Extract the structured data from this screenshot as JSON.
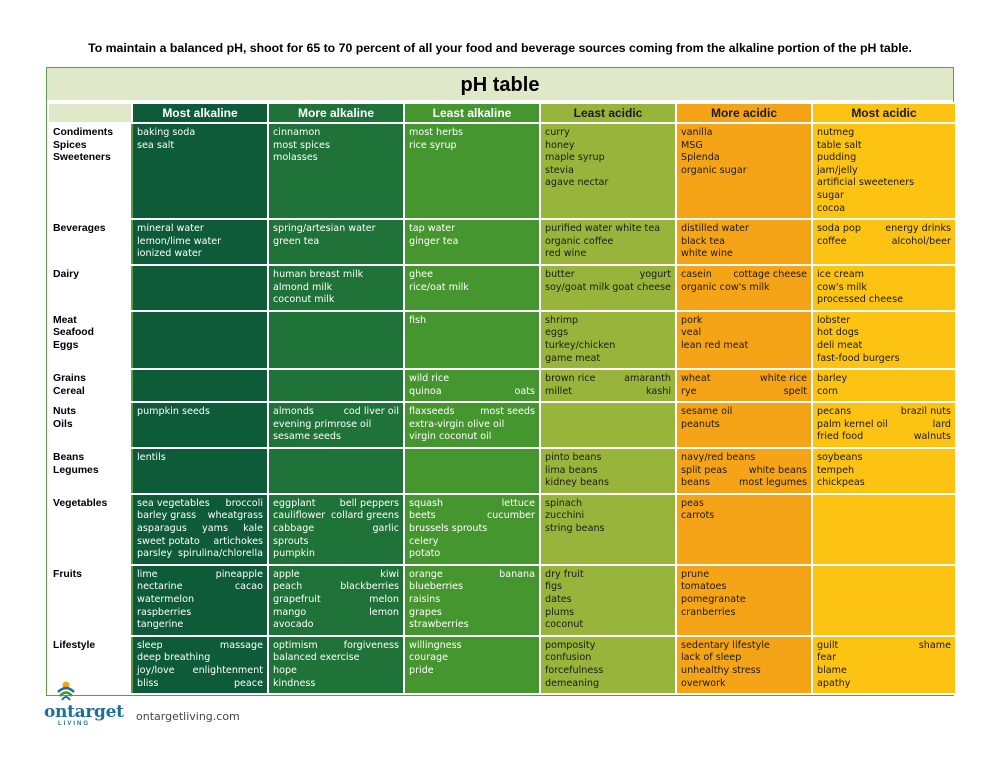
{
  "intro": "To maintain a balanced pH, shoot for 65 to 70 percent of all your food and beverage sources coming from the alkaline portion of the pH table.",
  "title": "pH table",
  "columns": [
    "Most alkaline",
    "More alkaline",
    "Least alkaline",
    "Least acidic",
    "More acidic",
    "Most acidic"
  ],
  "rows": [
    {
      "category": [
        "Condiments",
        "Spices",
        "Sweeteners"
      ],
      "cells": [
        [
          [
            "baking soda"
          ],
          [
            "sea salt"
          ]
        ],
        [
          [
            "cinnamon"
          ],
          [
            "most spices"
          ],
          [
            "molasses"
          ]
        ],
        [
          [
            "most herbs"
          ],
          [
            "rice syrup"
          ]
        ],
        [
          [
            "curry"
          ],
          [
            "honey"
          ],
          [
            "maple syrup"
          ],
          [
            "stevia"
          ],
          [
            "agave nectar"
          ]
        ],
        [
          [
            "vanilla"
          ],
          [
            "MSG"
          ],
          [
            "Splenda"
          ],
          [
            "organic sugar"
          ]
        ],
        [
          [
            "nutmeg"
          ],
          [
            "table salt"
          ],
          [
            "pudding"
          ],
          [
            "jam/jelly"
          ],
          [
            "artificial sweeteners"
          ],
          [
            "sugar"
          ],
          [
            "cocoa"
          ]
        ]
      ]
    },
    {
      "category": [
        "Beverages"
      ],
      "cells": [
        [
          [
            "mineral water"
          ],
          [
            "lemon/lime water"
          ],
          [
            "ionized water"
          ]
        ],
        [
          [
            "spring/artesian water"
          ],
          [
            "green tea"
          ]
        ],
        [
          [
            "tap water"
          ],
          [
            "ginger tea"
          ]
        ],
        [
          [
            "purified water white tea"
          ],
          [
            "organic coffee"
          ],
          [
            "red wine"
          ]
        ],
        [
          [
            "distilled water"
          ],
          [
            "black tea"
          ],
          [
            "white wine"
          ]
        ],
        [
          [
            "soda pop",
            "energy drinks"
          ],
          [
            "coffee",
            "alcohol/beer"
          ]
        ]
      ]
    },
    {
      "category": [
        "Dairy"
      ],
      "cells": [
        [],
        [
          [
            "human breast milk"
          ],
          [
            "almond milk"
          ],
          [
            "coconut milk"
          ]
        ],
        [
          [
            "ghee"
          ],
          [
            "rice/oat milk"
          ]
        ],
        [
          [
            "butter",
            "yogurt"
          ],
          [
            "soy/goat milk",
            "goat cheese"
          ]
        ],
        [
          [
            "casein",
            "cottage cheese"
          ],
          [
            "organic cow's milk"
          ]
        ],
        [
          [
            "ice cream"
          ],
          [
            "cow's milk"
          ],
          [
            "processed cheese"
          ]
        ]
      ]
    },
    {
      "category": [
        "Meat",
        "Seafood",
        "Eggs"
      ],
      "cells": [
        [],
        [],
        [
          [
            "fish"
          ]
        ],
        [
          [
            "shrimp"
          ],
          [
            "eggs"
          ],
          [
            "turkey/chicken"
          ],
          [
            "game meat"
          ]
        ],
        [
          [
            "pork"
          ],
          [
            "veal"
          ],
          [
            "lean red meat"
          ]
        ],
        [
          [
            "lobster"
          ],
          [
            "hot dogs"
          ],
          [
            "deli meat"
          ],
          [
            "fast-food burgers"
          ]
        ]
      ]
    },
    {
      "category": [
        "Grains",
        "Cereal"
      ],
      "cells": [
        [],
        [],
        [
          [
            "wild rice"
          ],
          [
            "quinoa",
            "oats"
          ]
        ],
        [
          [
            "brown rice",
            "amaranth"
          ],
          [
            "millet",
            "kashi"
          ]
        ],
        [
          [
            "wheat",
            "white rice"
          ],
          [
            "rye",
            "spelt"
          ]
        ],
        [
          [
            "barley"
          ],
          [
            "corn"
          ]
        ]
      ]
    },
    {
      "category": [
        "Nuts",
        "Oils"
      ],
      "cells": [
        [
          [
            "pumpkin seeds"
          ]
        ],
        [
          [
            "almonds",
            "cod liver oil"
          ],
          [
            "evening primrose oil"
          ],
          [
            "sesame seeds"
          ]
        ],
        [
          [
            "flaxseeds",
            "most seeds"
          ],
          [
            "extra-virgin olive oil"
          ],
          [
            "virgin coconut oil"
          ]
        ],
        [],
        [
          [
            "sesame oil"
          ],
          [
            "peanuts"
          ]
        ],
        [
          [
            "pecans",
            "brazil nuts"
          ],
          [
            "palm kernel oil",
            "lard"
          ],
          [
            "fried food",
            "walnuts"
          ]
        ]
      ]
    },
    {
      "category": [
        "Beans",
        "Legumes"
      ],
      "cells": [
        [
          [
            "lentils"
          ]
        ],
        [],
        [],
        [
          [
            "pinto beans"
          ],
          [
            "lima beans"
          ],
          [
            "kidney beans"
          ]
        ],
        [
          [
            "navy/red beans"
          ],
          [
            "split peas",
            "white beans"
          ],
          [
            "beans",
            "most legumes"
          ]
        ],
        [
          [
            "soybeans"
          ],
          [
            "tempeh"
          ],
          [
            "chickpeas"
          ]
        ]
      ]
    },
    {
      "category": [
        "Vegetables"
      ],
      "cells": [
        [
          [
            "sea vegetables",
            "broccoli"
          ],
          [
            "barley grass",
            "wheatgrass"
          ],
          [
            "asparagus",
            "yams",
            "kale"
          ],
          [
            "sweet potato",
            "artichokes"
          ],
          [
            "parsley",
            "spirulina/chlorella"
          ]
        ],
        [
          [
            "eggplant",
            "bell peppers"
          ],
          [
            "cauliflower",
            "collard greens"
          ],
          [
            "cabbage",
            "garlic"
          ],
          [
            "sprouts"
          ],
          [
            "pumpkin"
          ]
        ],
        [
          [
            "squash",
            "lettuce"
          ],
          [
            "beets",
            "cucumber"
          ],
          [
            "brussels sprouts"
          ],
          [
            "celery"
          ],
          [
            "potato"
          ]
        ],
        [
          [
            "spinach"
          ],
          [
            "zucchini"
          ],
          [
            "string beans"
          ]
        ],
        [
          [
            "peas"
          ],
          [
            "carrots"
          ]
        ],
        []
      ]
    },
    {
      "category": [
        "Fruits"
      ],
      "cells": [
        [
          [
            "lime",
            "pineapple"
          ],
          [
            "nectarine",
            "cacao"
          ],
          [
            "watermelon"
          ],
          [
            "raspberries"
          ],
          [
            "tangerine"
          ]
        ],
        [
          [
            "apple",
            "kiwi"
          ],
          [
            "peach",
            "blackberries"
          ],
          [
            "grapefruit",
            "melon"
          ],
          [
            "mango",
            "lemon"
          ],
          [
            "avocado"
          ]
        ],
        [
          [
            "orange",
            "banana"
          ],
          [
            "blueberries"
          ],
          [
            "raisins"
          ],
          [
            "grapes"
          ],
          [
            "strawberries"
          ]
        ],
        [
          [
            "dry fruit"
          ],
          [
            "figs"
          ],
          [
            "dates"
          ],
          [
            "plums"
          ],
          [
            "coconut"
          ]
        ],
        [
          [
            "prune"
          ],
          [
            "tomatoes"
          ],
          [
            "pomegranate"
          ],
          [
            "cranberries"
          ]
        ],
        []
      ]
    },
    {
      "category": [
        "Lifestyle"
      ],
      "cells": [
        [
          [
            "sleep",
            "massage"
          ],
          [
            "deep breathing"
          ],
          [
            "joy/love",
            "enlightenment"
          ],
          [
            "bliss",
            "peace"
          ]
        ],
        [
          [
            "optimism",
            "forgiveness"
          ],
          [
            "balanced exercise"
          ],
          [
            "hope"
          ],
          [
            "kindness"
          ]
        ],
        [
          [
            "willingness"
          ],
          [
            "courage"
          ],
          [
            "pride"
          ]
        ],
        [
          [
            "pomposity"
          ],
          [
            "confusion"
          ],
          [
            "forcefulness"
          ],
          [
            "demeaning"
          ]
        ],
        [
          [
            "sedentary lifestyle"
          ],
          [
            "lack of sleep"
          ],
          [
            "unhealthy stress"
          ],
          [
            "overwork"
          ]
        ],
        [
          [
            "guilt",
            "shame"
          ],
          [
            "fear"
          ],
          [
            "blame"
          ],
          [
            "apathy"
          ]
        ]
      ]
    }
  ],
  "footer": {
    "logo_main": "ontarget",
    "logo_sub": "LIVING",
    "website": "ontargetliving.com"
  },
  "colors": {
    "most_alkaline": "#0e5b3a",
    "more_alkaline": "#1f7238",
    "least_alkaline": "#46962f",
    "least_acidic": "#98b43a",
    "more_acidic": "#f5a418",
    "most_acidic": "#fcc313"
  }
}
